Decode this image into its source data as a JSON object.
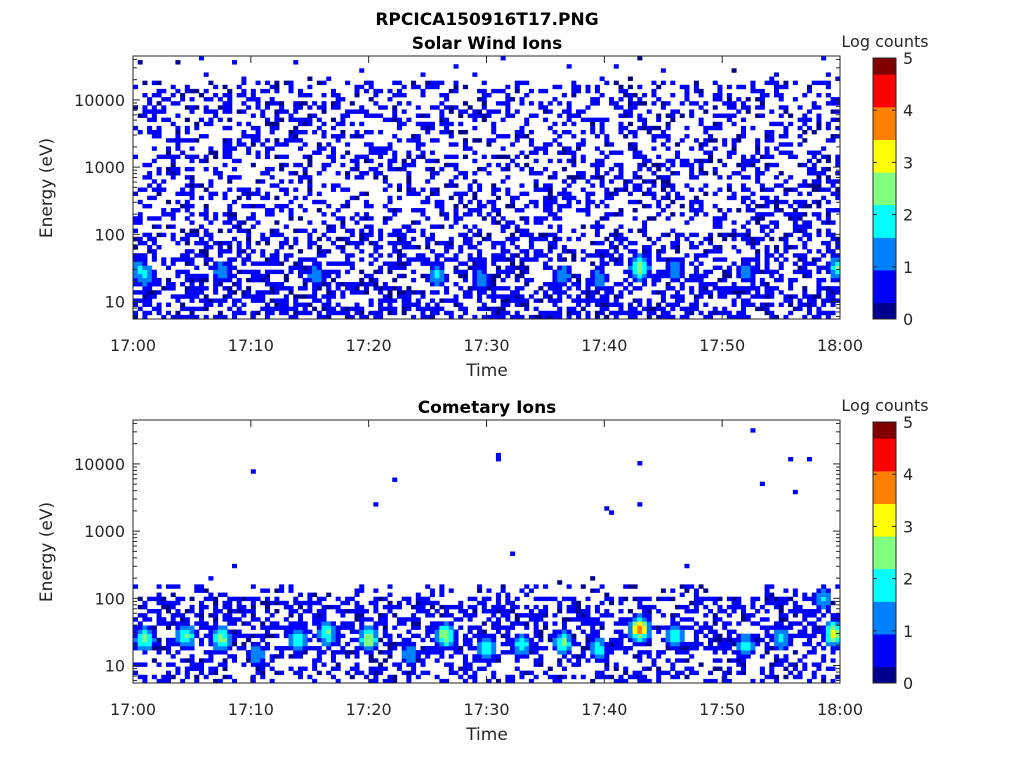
{
  "figure": {
    "title": "RPCICA150916T17.PNG"
  },
  "colormap": [
    "#00008f",
    "#0000ff",
    "#0080ff",
    "#00ffff",
    "#80ff80",
    "#ffff00",
    "#ff8000",
    "#ff0000",
    "#800000"
  ],
  "chart_data": [
    {
      "type": "heatmap",
      "title": "Solar Wind Ions",
      "xlabel": "Time",
      "ylabel": "Energy (eV)",
      "x_range": [
        "17:00",
        "18:00"
      ],
      "x_ticks": [
        "17:00",
        "17:10",
        "17:20",
        "17:30",
        "17:40",
        "17:50",
        "18:00"
      ],
      "y_scale": "log",
      "y_range": [
        5.5,
        45000
      ],
      "y_ticks": [
        {
          "value": 10,
          "label": "10"
        },
        {
          "value": 100,
          "label": "100"
        },
        {
          "value": 1000,
          "label": "1000"
        },
        {
          "value": 10000,
          "label": "10000"
        }
      ],
      "colorbar": {
        "title": "Log counts",
        "range": [
          0,
          5
        ],
        "ticks": [
          "0",
          "1",
          "2",
          "3",
          "4",
          "5"
        ]
      },
      "grid": false,
      "hotspots": [
        {
          "t": 0.5,
          "e": 30,
          "z": 1.7
        },
        {
          "t": 1.0,
          "e": 25,
          "z": 1.8
        },
        {
          "t": 7.5,
          "e": 28,
          "z": 1.5
        },
        {
          "t": 15.5,
          "e": 25,
          "z": 1.4
        },
        {
          "t": 25.8,
          "e": 25,
          "z": 1.7
        },
        {
          "t": 29.5,
          "e": 22,
          "z": 1.4
        },
        {
          "t": 36.5,
          "e": 25,
          "z": 1.4
        },
        {
          "t": 39.5,
          "e": 22,
          "z": 1.4
        },
        {
          "t": 43.0,
          "e": 32,
          "z": 2.7
        },
        {
          "t": 46.0,
          "e": 30,
          "z": 1.5
        },
        {
          "t": 52.0,
          "e": 28,
          "z": 1.5
        },
        {
          "t": 59.8,
          "e": 32,
          "z": 2.2
        }
      ]
    },
    {
      "type": "heatmap",
      "title": "Cometary Ions",
      "xlabel": "Time",
      "ylabel": "Energy (eV)",
      "x_range": [
        "17:00",
        "18:00"
      ],
      "x_ticks": [
        "17:00",
        "17:10",
        "17:20",
        "17:30",
        "17:40",
        "17:50",
        "18:00"
      ],
      "y_scale": "log",
      "y_range": [
        5.5,
        45000
      ],
      "y_ticks": [
        {
          "value": 10,
          "label": "10"
        },
        {
          "value": 100,
          "label": "100"
        },
        {
          "value": 1000,
          "label": "1000"
        },
        {
          "value": 10000,
          "label": "10000"
        }
      ],
      "colorbar": {
        "title": "Log counts",
        "range": [
          0,
          5
        ],
        "ticks": [
          "0",
          "1",
          "2",
          "3",
          "4",
          "5"
        ]
      },
      "grid": false,
      "hotspots": [
        {
          "t": 1.0,
          "e": 25,
          "z": 2.6
        },
        {
          "t": 4.5,
          "e": 28,
          "z": 2.4
        },
        {
          "t": 7.5,
          "e": 25,
          "z": 2.6
        },
        {
          "t": 10.5,
          "e": 15,
          "z": 1.6
        },
        {
          "t": 14.0,
          "e": 25,
          "z": 2.3
        },
        {
          "t": 16.5,
          "e": 30,
          "z": 2.3
        },
        {
          "t": 20.0,
          "e": 25,
          "z": 2.8
        },
        {
          "t": 23.5,
          "e": 15,
          "z": 1.6
        },
        {
          "t": 26.5,
          "e": 28,
          "z": 2.8
        },
        {
          "t": 30.0,
          "e": 18,
          "z": 2.0
        },
        {
          "t": 33.0,
          "e": 20,
          "z": 2.1
        },
        {
          "t": 36.5,
          "e": 22,
          "z": 2.4
        },
        {
          "t": 39.5,
          "e": 18,
          "z": 2.0
        },
        {
          "t": 43.0,
          "e": 35,
          "z": 3.8
        },
        {
          "t": 46.0,
          "e": 28,
          "z": 2.2
        },
        {
          "t": 52.0,
          "e": 20,
          "z": 2.0
        },
        {
          "t": 55.0,
          "e": 25,
          "z": 1.8
        },
        {
          "t": 59.5,
          "e": 30,
          "z": 3.2
        },
        {
          "t": 58.5,
          "e": 100,
          "z": 1.6
        }
      ]
    }
  ]
}
